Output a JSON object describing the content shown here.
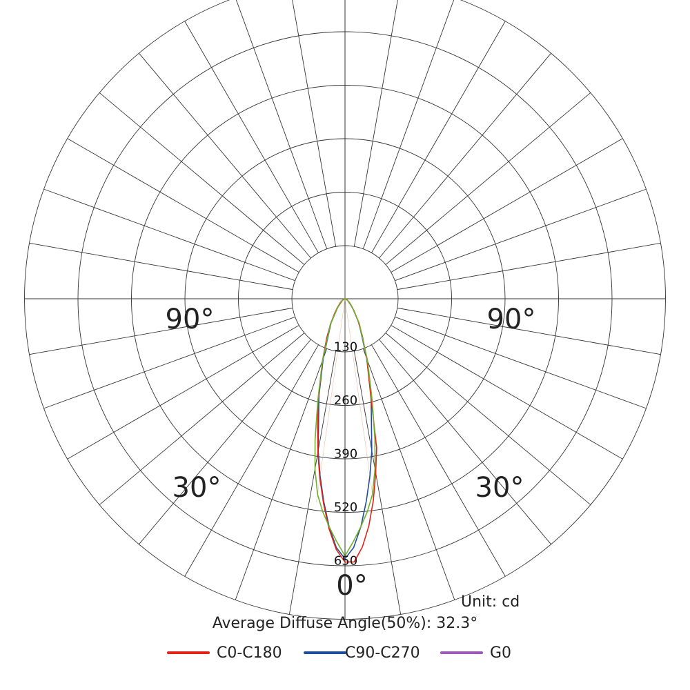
{
  "chart_data": {
    "type": "polar-line",
    "unit_label": "Unit: cd",
    "diffuse_label": "Average Diffuse Angle(50%): 32.3°",
    "radial_ticks": [
      130,
      260,
      390,
      520,
      650
    ],
    "angle_labels": [
      {
        "angle": -90,
        "text": "90°"
      },
      {
        "angle": 90,
        "text": "90°"
      },
      {
        "angle": -30,
        "text": "30°"
      },
      {
        "angle": 30,
        "text": "30°"
      },
      {
        "angle": 0,
        "text": "0°"
      }
    ],
    "series": [
      {
        "name": "C0-C180",
        "color": "#e2231a",
        "angles": [
          -90,
          -75,
          -60,
          -50,
          -40,
          -35,
          -30,
          -25,
          -20,
          -15,
          -12,
          -10,
          -8,
          -6,
          -4,
          -2,
          0,
          2,
          4,
          6,
          8,
          10,
          12,
          15,
          20,
          25,
          30,
          35,
          40,
          50,
          60,
          75,
          90
        ],
        "values": [
          0,
          3,
          8,
          15,
          30,
          45,
          70,
          105,
          160,
          250,
          320,
          380,
          440,
          500,
          560,
          610,
          640,
          640,
          605,
          555,
          495,
          430,
          370,
          240,
          155,
          100,
          65,
          42,
          28,
          14,
          7,
          3,
          0
        ]
      },
      {
        "name": "C90-C270",
        "color": "#1f4e9c",
        "angles": [
          -90,
          -60,
          -40,
          -30,
          -20,
          -15,
          -10,
          -8,
          -6,
          -4,
          -2,
          0,
          2,
          4,
          6,
          8,
          10,
          15,
          20,
          30,
          40,
          60,
          90
        ],
        "values": [
          0,
          7,
          28,
          68,
          155,
          245,
          375,
          435,
          495,
          555,
          605,
          632,
          605,
          555,
          495,
          435,
          375,
          245,
          155,
          68,
          28,
          7,
          0
        ]
      },
      {
        "name": "G0",
        "color": "#6fb02c",
        "legend_color": "#9b59b6",
        "angles": [
          -90,
          -60,
          -40,
          -30,
          -20,
          -15,
          -12,
          -10,
          -8,
          -6,
          -4,
          -2,
          0,
          2,
          4,
          6,
          8,
          10,
          12,
          15,
          20,
          30,
          40,
          60,
          90
        ],
        "values": [
          0,
          7,
          28,
          70,
          160,
          255,
          350,
          420,
          480,
          520,
          555,
          590,
          625,
          590,
          555,
          520,
          480,
          420,
          350,
          255,
          160,
          70,
          28,
          7,
          0
        ]
      }
    ]
  },
  "legend": [
    {
      "label": "C0-C180",
      "color": "#e2231a"
    },
    {
      "label": "C90-C270",
      "color": "#1f4e9c"
    },
    {
      "label": "G0",
      "color": "#9b59b6"
    }
  ]
}
